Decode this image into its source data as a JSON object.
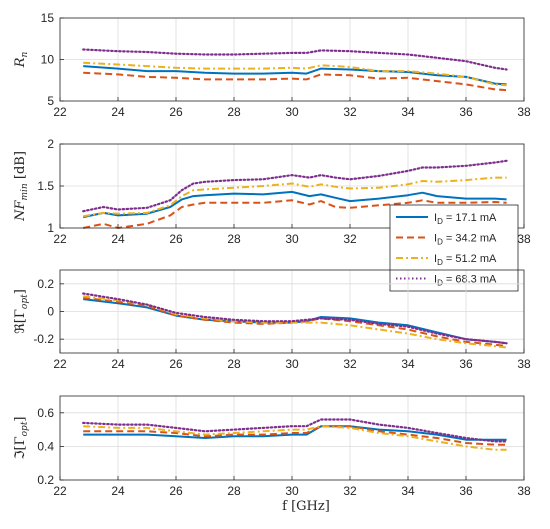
{
  "figure": {
    "xlabel": "f [GHz]"
  },
  "chart_data": [
    {
      "type": "line",
      "ylabel": "R_n",
      "xlim": [
        22,
        38
      ],
      "ylim": [
        5,
        15
      ],
      "xticks": [
        22,
        24,
        26,
        28,
        30,
        32,
        34,
        36,
        38
      ],
      "yticks": [
        5,
        10,
        15
      ],
      "series": [
        {
          "color": "#0072BD",
          "style": "solid",
          "x": [
            22.8,
            24,
            25,
            26,
            27,
            28,
            29,
            30,
            30.5,
            31,
            32,
            33,
            34,
            35,
            36,
            37,
            37.4
          ],
          "y": [
            9.2,
            8.9,
            8.6,
            8.6,
            8.4,
            8.3,
            8.3,
            8.4,
            8.3,
            8.9,
            8.8,
            8.6,
            8.5,
            8.1,
            7.9,
            7.1,
            7.0
          ]
        },
        {
          "color": "#D95319",
          "style": "dashed",
          "x": [
            22.8,
            24,
            25,
            26,
            27,
            28,
            29,
            30,
            30.5,
            31,
            32,
            33,
            34,
            35,
            36,
            37,
            37.4
          ],
          "y": [
            8.4,
            8.2,
            7.9,
            7.8,
            7.6,
            7.6,
            7.6,
            7.7,
            7.6,
            8.2,
            8.1,
            7.7,
            7.8,
            7.4,
            7.0,
            6.4,
            6.3
          ]
        },
        {
          "color": "#EDB120",
          "style": "dashdot",
          "x": [
            22.8,
            24,
            25,
            26,
            27,
            28,
            29,
            30,
            30.5,
            31,
            32,
            33,
            34,
            35,
            36,
            37,
            37.4
          ],
          "y": [
            9.6,
            9.4,
            9.2,
            9.0,
            8.9,
            8.9,
            8.9,
            9.0,
            8.9,
            9.3,
            9.1,
            8.6,
            8.6,
            8.3,
            7.9,
            7.0,
            6.9
          ]
        },
        {
          "color": "#7E2F8E",
          "style": "dotted",
          "x": [
            22.8,
            24,
            25,
            26,
            27,
            28,
            29,
            30,
            30.5,
            31,
            32,
            33,
            34,
            35,
            36,
            37,
            37.4
          ],
          "y": [
            11.2,
            11.0,
            10.9,
            10.7,
            10.6,
            10.6,
            10.7,
            10.8,
            10.8,
            11.1,
            11.0,
            10.8,
            10.6,
            10.2,
            9.8,
            9.0,
            8.8
          ]
        }
      ]
    },
    {
      "type": "line",
      "ylabel": "NF_min [dB]",
      "xlim": [
        22,
        38
      ],
      "ylim": [
        1,
        2
      ],
      "xticks": [
        22,
        24,
        26,
        28,
        30,
        32,
        34,
        36,
        38
      ],
      "yticks": [
        1,
        1.5,
        2
      ],
      "legend": {
        "placement": "center-right",
        "entries": [
          "I_D = 17.1 mA",
          "I_D = 34.2 mA",
          "I_D = 51.2 mA",
          "I_D = 68.3 mA"
        ]
      },
      "series": [
        {
          "color": "#0072BD",
          "style": "solid",
          "x": [
            22.8,
            23.5,
            24,
            25,
            25.8,
            26.2,
            26.6,
            27,
            28,
            29,
            30,
            30.6,
            31,
            31.5,
            32,
            33,
            34,
            34.5,
            35,
            36,
            37,
            37.4
          ],
          "y": [
            1.13,
            1.18,
            1.15,
            1.17,
            1.25,
            1.34,
            1.38,
            1.39,
            1.41,
            1.4,
            1.43,
            1.38,
            1.4,
            1.36,
            1.32,
            1.35,
            1.39,
            1.42,
            1.38,
            1.35,
            1.35,
            1.34
          ]
        },
        {
          "color": "#D95319",
          "style": "dashed",
          "x": [
            22.8,
            23.5,
            24,
            25,
            25.8,
            26.2,
            26.6,
            27,
            28,
            29,
            30,
            30.6,
            31,
            31.5,
            32,
            33,
            34,
            34.5,
            35,
            36,
            37,
            37.4
          ],
          "y": [
            1.0,
            1.05,
            1.0,
            1.05,
            1.15,
            1.25,
            1.28,
            1.3,
            1.3,
            1.3,
            1.33,
            1.28,
            1.32,
            1.25,
            1.24,
            1.27,
            1.3,
            1.33,
            1.3,
            1.3,
            1.31,
            1.3
          ]
        },
        {
          "color": "#EDB120",
          "style": "dashdot",
          "x": [
            22.8,
            23.5,
            24,
            25,
            25.8,
            26.2,
            26.6,
            27,
            28,
            29,
            30,
            30.6,
            31,
            31.5,
            32,
            33,
            34,
            34.5,
            35,
            36,
            37,
            37.4
          ],
          "y": [
            1.14,
            1.18,
            1.17,
            1.18,
            1.27,
            1.38,
            1.45,
            1.46,
            1.48,
            1.5,
            1.53,
            1.49,
            1.52,
            1.49,
            1.47,
            1.48,
            1.52,
            1.56,
            1.55,
            1.57,
            1.6,
            1.6
          ]
        },
        {
          "color": "#7E2F8E",
          "style": "dotted",
          "x": [
            22.8,
            23.5,
            24,
            25,
            25.8,
            26.2,
            26.6,
            27,
            28,
            29,
            30,
            30.6,
            31,
            31.5,
            32,
            33,
            34,
            34.5,
            35,
            36,
            37,
            37.4
          ],
          "y": [
            1.2,
            1.25,
            1.22,
            1.24,
            1.33,
            1.45,
            1.53,
            1.55,
            1.57,
            1.58,
            1.63,
            1.6,
            1.63,
            1.6,
            1.58,
            1.62,
            1.68,
            1.72,
            1.72,
            1.74,
            1.78,
            1.8
          ]
        }
      ]
    },
    {
      "type": "line",
      "ylabel": "Re[Γ_opt]",
      "xlim": [
        22,
        38
      ],
      "ylim": [
        -0.3,
        0.3
      ],
      "xticks": [
        22,
        24,
        26,
        28,
        30,
        32,
        34,
        36,
        38
      ],
      "yticks": [
        -0.2,
        0,
        0.2
      ],
      "series": [
        {
          "color": "#0072BD",
          "style": "solid",
          "x": [
            22.8,
            24,
            25,
            26,
            27,
            28,
            29,
            30,
            30.5,
            31,
            32,
            33,
            34,
            35,
            36,
            37,
            37.4
          ],
          "y": [
            0.09,
            0.06,
            0.03,
            -0.03,
            -0.06,
            -0.07,
            -0.08,
            -0.08,
            -0.07,
            -0.04,
            -0.05,
            -0.08,
            -0.1,
            -0.15,
            -0.2,
            -0.22,
            -0.23
          ]
        },
        {
          "color": "#D95319",
          "style": "dashed",
          "x": [
            22.8,
            24,
            25,
            26,
            27,
            28,
            29,
            30,
            30.5,
            31,
            32,
            33,
            34,
            35,
            36,
            37,
            37.4
          ],
          "y": [
            0.1,
            0.07,
            0.04,
            -0.03,
            -0.06,
            -0.08,
            -0.09,
            -0.08,
            -0.07,
            -0.05,
            -0.07,
            -0.1,
            -0.13,
            -0.18,
            -0.22,
            -0.24,
            -0.25
          ]
        },
        {
          "color": "#EDB120",
          "style": "dashdot",
          "x": [
            22.8,
            24,
            25,
            26,
            27,
            28,
            29,
            30,
            30.5,
            31,
            32,
            33,
            34,
            35,
            36,
            37,
            37.4
          ],
          "y": [
            0.11,
            0.08,
            0.05,
            -0.02,
            -0.05,
            -0.07,
            -0.08,
            -0.08,
            -0.08,
            -0.08,
            -0.1,
            -0.13,
            -0.16,
            -0.2,
            -0.23,
            -0.25,
            -0.26
          ]
        },
        {
          "color": "#7E2F8E",
          "style": "dotted",
          "x": [
            22.8,
            24,
            25,
            26,
            27,
            28,
            29,
            30,
            30.5,
            31,
            32,
            33,
            34,
            35,
            36,
            37,
            37.4
          ],
          "y": [
            0.13,
            0.09,
            0.05,
            -0.01,
            -0.04,
            -0.06,
            -0.07,
            -0.07,
            -0.06,
            -0.05,
            -0.06,
            -0.09,
            -0.11,
            -0.16,
            -0.2,
            -0.22,
            -0.23
          ]
        }
      ]
    },
    {
      "type": "line",
      "ylabel": "Im[Γ_opt]",
      "xlim": [
        22,
        38
      ],
      "ylim": [
        0.2,
        0.7
      ],
      "xticks": [
        22,
        24,
        26,
        28,
        30,
        32,
        34,
        36,
        38
      ],
      "yticks": [
        0.2,
        0.4,
        0.6
      ],
      "series": [
        {
          "color": "#0072BD",
          "style": "solid",
          "x": [
            22.8,
            24,
            25,
            26,
            27,
            28,
            29,
            30,
            30.5,
            31,
            32,
            33,
            34,
            35,
            36,
            37,
            37.4
          ],
          "y": [
            0.47,
            0.47,
            0.47,
            0.46,
            0.45,
            0.46,
            0.46,
            0.47,
            0.47,
            0.52,
            0.52,
            0.5,
            0.49,
            0.47,
            0.44,
            0.44,
            0.44
          ]
        },
        {
          "color": "#D95319",
          "style": "dashed",
          "x": [
            22.8,
            24,
            25,
            26,
            27,
            28,
            29,
            30,
            30.5,
            31,
            32,
            33,
            34,
            35,
            36,
            37,
            37.4
          ],
          "y": [
            0.49,
            0.49,
            0.49,
            0.48,
            0.46,
            0.47,
            0.47,
            0.48,
            0.48,
            0.52,
            0.52,
            0.49,
            0.47,
            0.45,
            0.42,
            0.41,
            0.41
          ]
        },
        {
          "color": "#EDB120",
          "style": "dashdot",
          "x": [
            22.8,
            24,
            25,
            26,
            27,
            28,
            29,
            30,
            30.5,
            31,
            32,
            33,
            34,
            35,
            36,
            37,
            37.4
          ],
          "y": [
            0.52,
            0.51,
            0.51,
            0.49,
            0.47,
            0.48,
            0.49,
            0.5,
            0.5,
            0.52,
            0.51,
            0.48,
            0.46,
            0.43,
            0.4,
            0.38,
            0.38
          ]
        },
        {
          "color": "#7E2F8E",
          "style": "dotted",
          "x": [
            22.8,
            24,
            25,
            26,
            27,
            28,
            29,
            30,
            30.5,
            31,
            32,
            33,
            34,
            35,
            36,
            37,
            37.4
          ],
          "y": [
            0.54,
            0.53,
            0.53,
            0.51,
            0.49,
            0.5,
            0.51,
            0.52,
            0.52,
            0.56,
            0.56,
            0.53,
            0.51,
            0.48,
            0.45,
            0.43,
            0.43
          ]
        }
      ]
    }
  ]
}
